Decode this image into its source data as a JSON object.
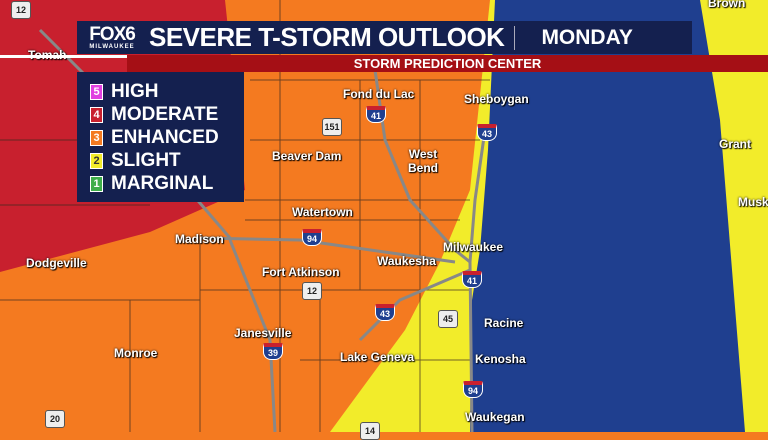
{
  "header": {
    "logo_main": "FOX6",
    "logo_sub": "MILWAUKEE",
    "title": "SEVERE T-STORM OUTLOOK",
    "day": "MONDAY",
    "subtitle": "STORM PREDICTION CENTER"
  },
  "legend": [
    {
      "num": "5",
      "label": "HIGH",
      "color": "#e040e0"
    },
    {
      "num": "4",
      "label": "MODERATE",
      "color": "#c8202e"
    },
    {
      "num": "3",
      "label": "ENHANCED",
      "color": "#f47a20"
    },
    {
      "num": "2",
      "label": "SLIGHT",
      "color": "#f2ec2a"
    },
    {
      "num": "1",
      "label": "MARGINAL",
      "color": "#3fae49"
    }
  ],
  "cities": [
    "Tomah",
    "Fond du Lac",
    "Sheboygan",
    "Beaver Dam",
    "West Bend",
    "Watertown",
    "Madison",
    "Milwaukee",
    "Dodgeville",
    "Fort Atkinson",
    "Waukesha",
    "Janesville",
    "Racine",
    "Monroe",
    "Lake Geneva",
    "Kenosha",
    "Waukegan",
    "Brown",
    "Grant",
    "Musk"
  ],
  "highways": {
    "interstate": [
      "41",
      "43",
      "94",
      "41",
      "43",
      "39",
      "94"
    ],
    "us": [
      "12",
      "151",
      "12",
      "45",
      "20",
      "14"
    ]
  },
  "colors": {
    "moderate": "#c8202e",
    "enhanced": "#f47a20",
    "slight": "#f2ec2a",
    "lake": "#1f3f8f",
    "banner": "#14204f",
    "subbar": "#a50f15"
  }
}
